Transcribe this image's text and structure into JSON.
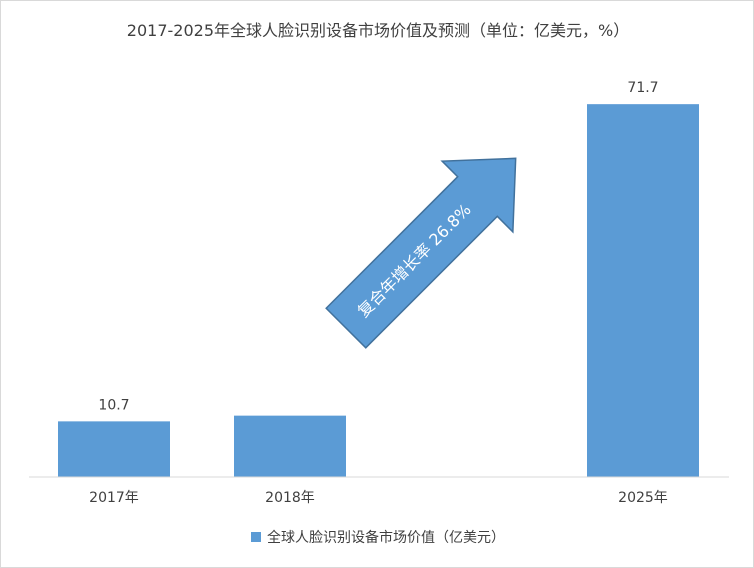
{
  "chart_data": {
    "type": "bar",
    "title": "2017-2025年全球人脸识别设备市场价值及预测（单位：亿美元，%）",
    "categories": [
      "2017年",
      "2018年",
      "2025年"
    ],
    "series": [
      {
        "name": "全球人脸识别设备市场价值（亿美元）",
        "values": [
          10.7,
          11.8,
          71.7
        ]
      }
    ],
    "data_labels": [
      "10.7",
      "",
      "71.7"
    ],
    "ylim": [
      0,
      75
    ],
    "xlabel": "",
    "ylabel": "",
    "grid": false,
    "legend": "bottom",
    "annotation": "复合年增长率 26.8%",
    "bar_color": "#5b9bd5",
    "text_color": "#404040"
  }
}
